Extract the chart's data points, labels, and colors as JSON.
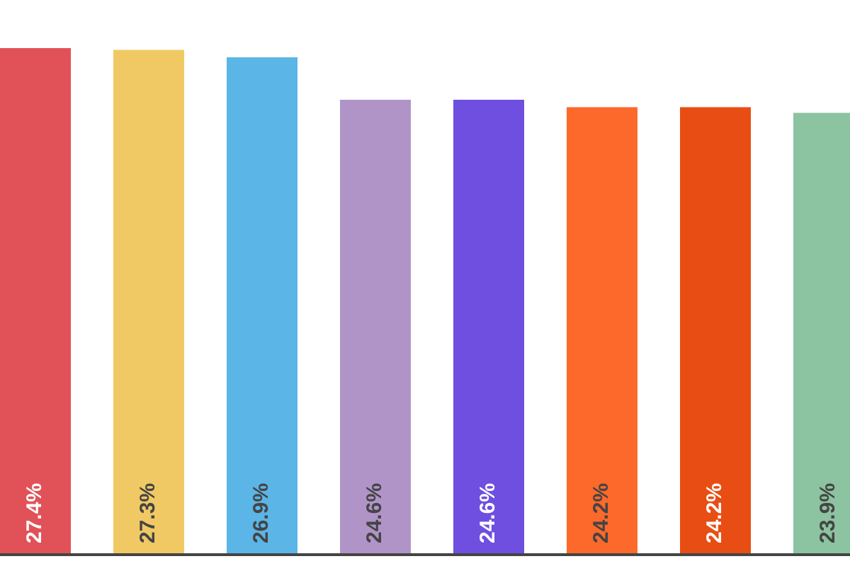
{
  "chart_data": {
    "type": "bar",
    "categories": [
      null,
      null,
      null,
      null,
      null,
      null,
      null,
      null
    ],
    "values": [
      27.4,
      27.3,
      26.9,
      24.6,
      24.6,
      24.2,
      24.2,
      23.9
    ],
    "colors": [
      "#e05257",
      "#f0c964",
      "#5bb5e6",
      "#b094c8",
      "#6e4fe0",
      "#fc692a",
      "#e84e14",
      "#8cc3a0"
    ],
    "data_labels": true,
    "value_labels": [
      "27.4%",
      "27.3%",
      "26.9%",
      "24.6%",
      "24.6%",
      "24.2%",
      "24.2%",
      "23.9%"
    ],
    "legend": false,
    "tick_labels": false
  }
}
